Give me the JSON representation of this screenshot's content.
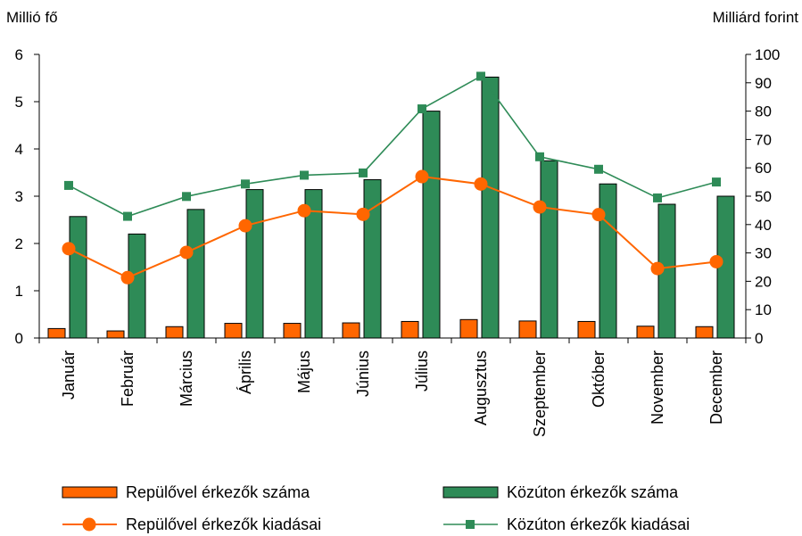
{
  "chart_data": {
    "type": "bar",
    "left_axis_title": "Millió fő",
    "right_axis_title": "Milliárd forint",
    "left_ylim": [
      0,
      6
    ],
    "left_ticks": [
      "0",
      "1",
      "2",
      "3",
      "4",
      "5",
      "6"
    ],
    "right_ylim": [
      0,
      100
    ],
    "right_ticks": [
      "0",
      "10",
      "20",
      "30",
      "40",
      "50",
      "60",
      "70",
      "80",
      "90",
      "100"
    ],
    "grid": false,
    "legend_position": "bottom",
    "categories": [
      "Január",
      "Február",
      "Március",
      "Április",
      "Május",
      "Június",
      "Július",
      "Augusztus",
      "Szeptember",
      "Október",
      "November",
      "December"
    ],
    "series": [
      {
        "name": "Repülővel érkezők száma",
        "kind": "bar",
        "axis": "left",
        "color": "#ff6600",
        "values": [
          0.2,
          0.15,
          0.24,
          0.31,
          0.31,
          0.32,
          0.35,
          0.39,
          0.36,
          0.35,
          0.25,
          0.24
        ]
      },
      {
        "name": "Közúton érkezők száma",
        "kind": "bar",
        "axis": "left",
        "color": "#2e8b57",
        "values": [
          2.57,
          2.2,
          2.72,
          3.14,
          3.14,
          3.35,
          4.8,
          5.52,
          3.75,
          3.26,
          2.83,
          3.0
        ]
      },
      {
        "name": "Repülővel érkezők kiadásai",
        "kind": "line",
        "axis": "right",
        "color": "#ff6600",
        "marker": "circle",
        "values": [
          31.5,
          21.3,
          30.2,
          39.6,
          44.9,
          43.6,
          56.9,
          54.3,
          46.2,
          43.5,
          24.5,
          26.9
        ]
      },
      {
        "name": "Közúton érkezők kiadásai",
        "kind": "line",
        "axis": "right",
        "color": "#2e8b57",
        "marker": "square",
        "values": [
          53.8,
          42.9,
          49.9,
          54.3,
          57.4,
          58.2,
          80.8,
          92.3,
          63.9,
          59.5,
          49.4,
          55.0
        ]
      }
    ]
  }
}
